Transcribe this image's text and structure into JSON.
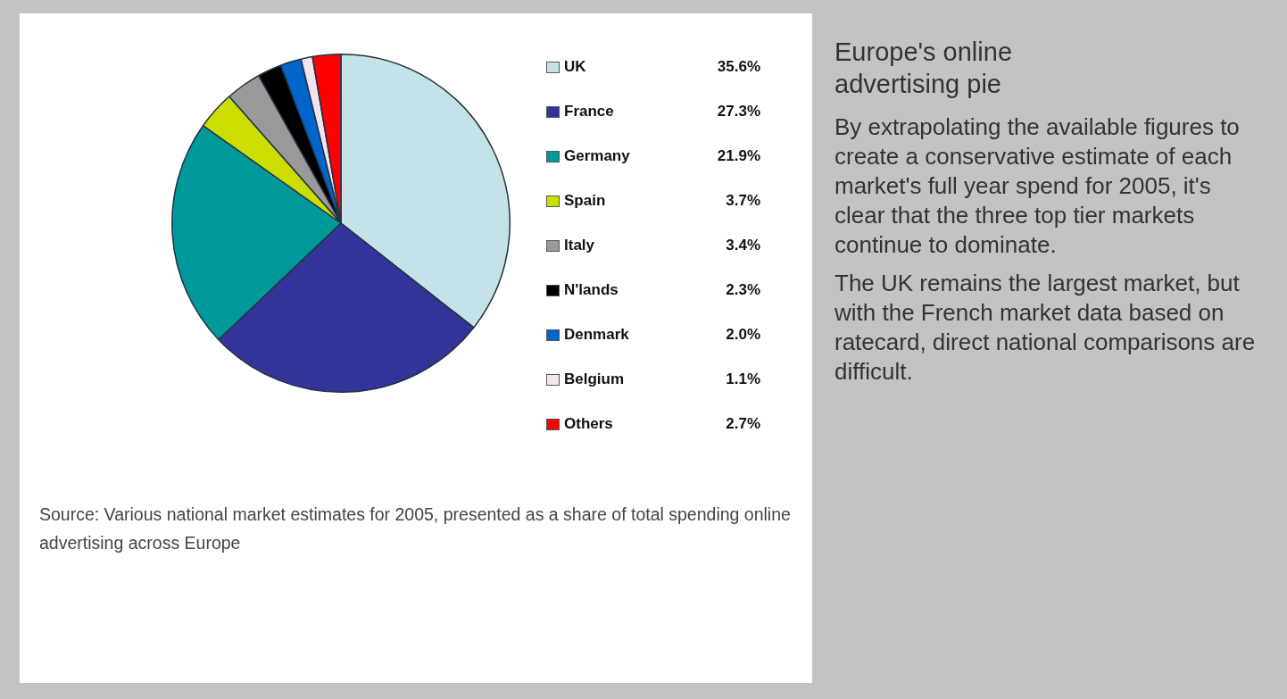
{
  "chart_data": {
    "type": "pie",
    "title": "Europe's online advertising pie",
    "categories": [
      "UK",
      "France",
      "Germany",
      "Spain",
      "Italy",
      "N'lands",
      "Denmark",
      "Belgium",
      "Others"
    ],
    "values": [
      35.6,
      27.3,
      21.9,
      3.7,
      3.4,
      2.3,
      2.0,
      1.1,
      2.7
    ],
    "value_labels": [
      "35.6%",
      "27.3%",
      "21.9%",
      "3.7%",
      "3.4%",
      "2.3%",
      "2.0%",
      "1.1%",
      "2.7%"
    ],
    "colors": [
      "#c4e2e8",
      "#333399",
      "#009999",
      "#ccdd00",
      "#999999",
      "#000000",
      "#0066cc",
      "#f4e4f0",
      "#ff0000"
    ],
    "legend": "right",
    "annotations": [
      "Source: Various national market estimates for 2005, presented as a share of total spending online advertising across Europe",
      "By extrapolating the available figures to create a conservative estimate of each market's full year spend for 2005, it's clear that the three top tier markets continue to dominate.",
      "The UK remains the largest market, but with the French market data based on ratecard, direct national comparisons are difficult."
    ]
  }
}
